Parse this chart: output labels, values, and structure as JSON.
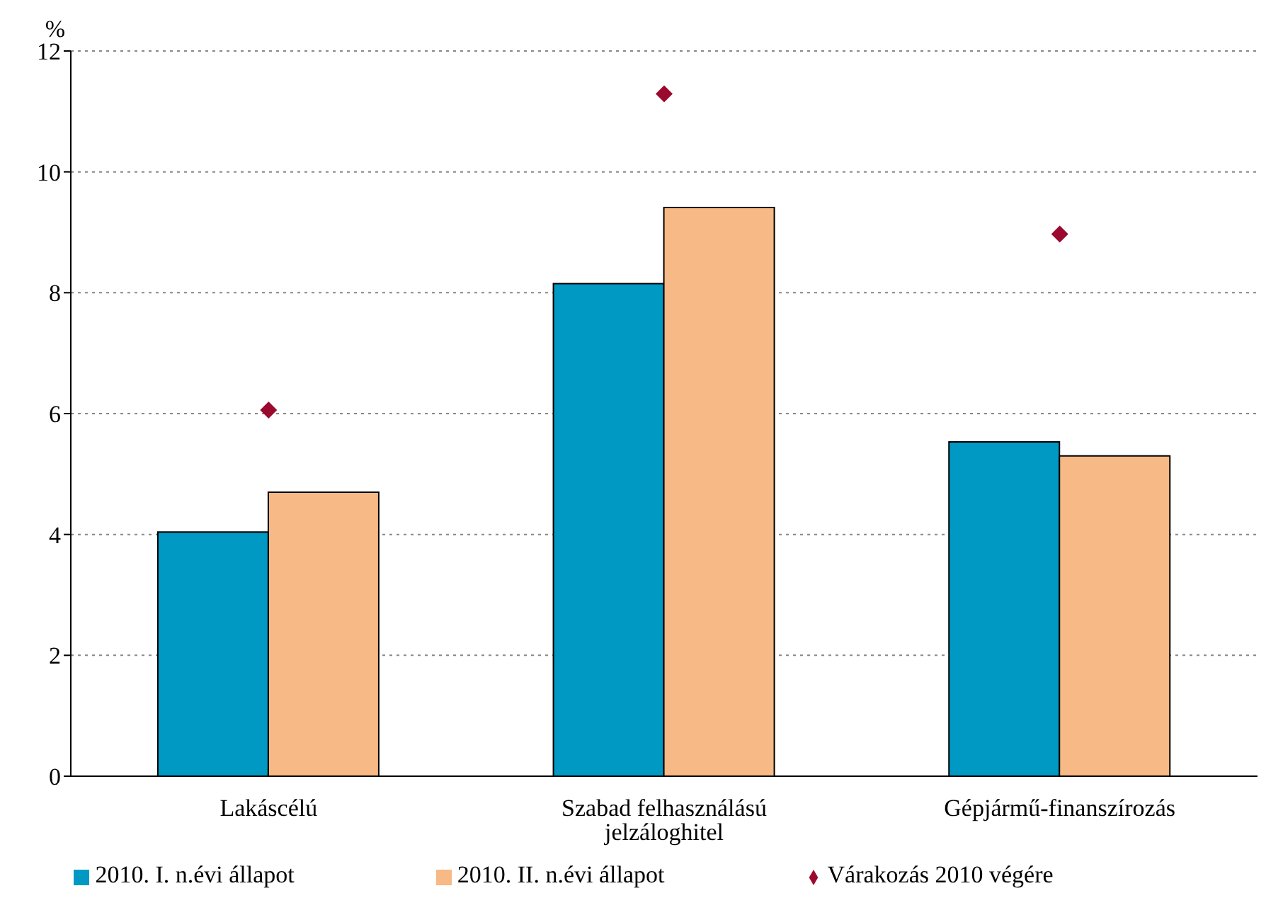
{
  "chart_data": {
    "type": "bar",
    "ylabel": "%",
    "categories": [
      "Lakáscélú",
      "Szabad felhasználású jelzáloghitel",
      "Gépjármű-finanszírozás"
    ],
    "series": [
      {
        "name": "2010. I. n.évi állapot",
        "color": "#0099c4",
        "values": [
          4.04,
          8.15,
          5.53
        ]
      },
      {
        "name": "2010. II. n.évi állapot",
        "color": "#f7b985",
        "values": [
          4.7,
          9.41,
          5.3
        ]
      },
      {
        "name": "Várakozás 2010 végére",
        "type": "scatter",
        "marker": "diamond",
        "color": "#9b0a2e",
        "values": [
          6.06,
          11.29,
          8.97
        ]
      }
    ],
    "ylim": [
      0,
      12
    ],
    "yticks": [
      0,
      2,
      4,
      6,
      8,
      10,
      12
    ],
    "grid": "y",
    "legend": "bottom"
  }
}
